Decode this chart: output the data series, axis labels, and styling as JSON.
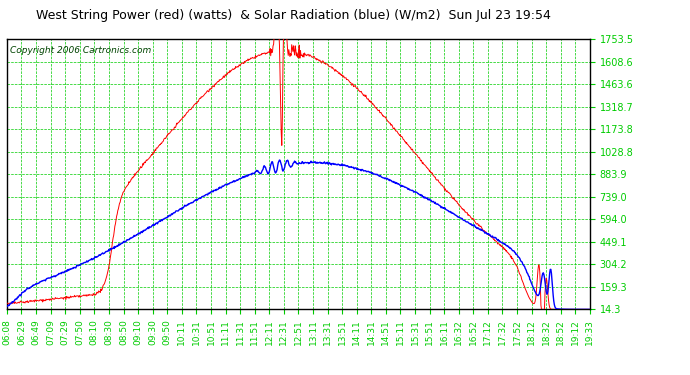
{
  "title": "West String Power (red) (watts)  & Solar Radiation (blue) (W/m2)  Sun Jul 23 19:54",
  "copyright": "Copyright 2006 Cartronics.com",
  "background_color": "#ffffff",
  "plot_bg_color": "#ffffff",
  "grid_color": "#00cc00",
  "y_ticks": [
    14.3,
    159.3,
    304.2,
    449.1,
    594.0,
    739.0,
    883.9,
    1028.8,
    1173.8,
    1318.7,
    1463.6,
    1608.6,
    1753.5
  ],
  "x_labels": [
    "06:08",
    "06:29",
    "06:49",
    "07:09",
    "07:29",
    "07:50",
    "08:10",
    "08:30",
    "08:50",
    "09:10",
    "09:30",
    "09:50",
    "10:11",
    "10:31",
    "10:51",
    "11:11",
    "11:31",
    "11:51",
    "12:11",
    "12:31",
    "12:51",
    "13:11",
    "13:31",
    "13:51",
    "14:11",
    "14:31",
    "14:51",
    "15:11",
    "15:31",
    "15:51",
    "16:11",
    "16:32",
    "16:52",
    "17:12",
    "17:32",
    "17:52",
    "18:12",
    "18:32",
    "18:52",
    "19:12",
    "19:33"
  ],
  "red_line_color": "#ff0000",
  "blue_line_color": "#0000ff",
  "title_color": "#000000",
  "tick_color": "#00cc00",
  "title_fontsize": 9,
  "copyright_fontsize": 6.5,
  "tick_fontsize": 7,
  "y_min": 14.3,
  "y_max": 1753.5
}
